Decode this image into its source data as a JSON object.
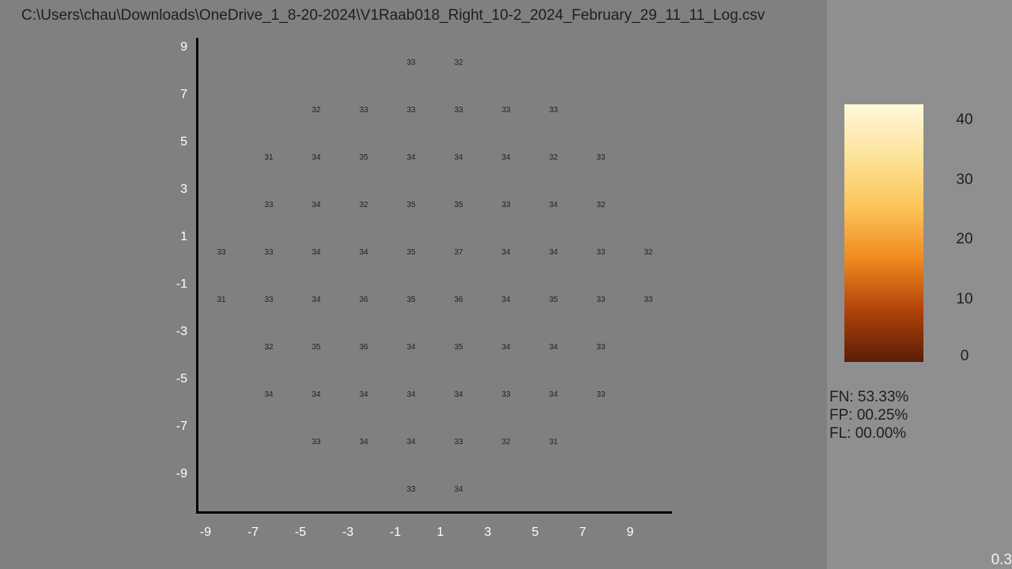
{
  "file_title": "C:\\Users\\chau\\Downloads\\OneDrive_1_8-20-2024\\V1Raab018_Right_10-2_2024_February_29_11_11_Log.csv",
  "stats": {
    "fn": "FN: 53.33%",
    "fp": "FP: 00.25%",
    "fl": "FL: 00.00%"
  },
  "corner_value": "0.3",
  "colors": {
    "background": "#808080",
    "panel": "#8f8f8f",
    "colormap": [
      "#5a1e06",
      "#b0420a",
      "#f08a1e",
      "#fcc45a",
      "#fde39a",
      "#fff8dc"
    ]
  },
  "chart_data": {
    "type": "heatmap",
    "title": "",
    "xlabel": "",
    "ylabel": "",
    "x_ticks": [
      -9,
      -7,
      -5,
      -3,
      -1,
      1,
      3,
      5,
      7,
      9
    ],
    "y_ticks": [
      9,
      7,
      5,
      3,
      1,
      -1,
      -3,
      -5,
      -7,
      -9
    ],
    "xlim": [
      -10,
      10
    ],
    "ylim": [
      -10,
      10
    ],
    "colorbar": {
      "min": 0,
      "max": 43,
      "ticks": [
        40,
        30,
        20,
        10,
        0
      ]
    },
    "points": [
      {
        "x": -1,
        "y": 9,
        "v": 33
      },
      {
        "x": 1,
        "y": 9,
        "v": 32
      },
      {
        "x": -5,
        "y": 7,
        "v": 32
      },
      {
        "x": -3,
        "y": 7,
        "v": 33
      },
      {
        "x": -1,
        "y": 7,
        "v": 33
      },
      {
        "x": 1,
        "y": 7,
        "v": 33
      },
      {
        "x": 3,
        "y": 7,
        "v": 33
      },
      {
        "x": 5,
        "y": 7,
        "v": 33
      },
      {
        "x": -7,
        "y": 5,
        "v": 31
      },
      {
        "x": -5,
        "y": 5,
        "v": 34
      },
      {
        "x": -3,
        "y": 5,
        "v": 35
      },
      {
        "x": -1,
        "y": 5,
        "v": 34
      },
      {
        "x": 1,
        "y": 5,
        "v": 34
      },
      {
        "x": 3,
        "y": 5,
        "v": 34
      },
      {
        "x": 5,
        "y": 5,
        "v": 32
      },
      {
        "x": 7,
        "y": 5,
        "v": 33
      },
      {
        "x": -7,
        "y": 3,
        "v": 33
      },
      {
        "x": -5,
        "y": 3,
        "v": 34
      },
      {
        "x": -3,
        "y": 3,
        "v": 32
      },
      {
        "x": -1,
        "y": 3,
        "v": 35
      },
      {
        "x": 1,
        "y": 3,
        "v": 35
      },
      {
        "x": 3,
        "y": 3,
        "v": 33
      },
      {
        "x": 5,
        "y": 3,
        "v": 34
      },
      {
        "x": 7,
        "y": 3,
        "v": 32
      },
      {
        "x": -9,
        "y": 1,
        "v": 33
      },
      {
        "x": -7,
        "y": 1,
        "v": 33
      },
      {
        "x": -5,
        "y": 1,
        "v": 34
      },
      {
        "x": -3,
        "y": 1,
        "v": 34
      },
      {
        "x": -1,
        "y": 1,
        "v": 35
      },
      {
        "x": 1,
        "y": 1,
        "v": 37
      },
      {
        "x": 3,
        "y": 1,
        "v": 34
      },
      {
        "x": 5,
        "y": 1,
        "v": 34
      },
      {
        "x": 7,
        "y": 1,
        "v": 33
      },
      {
        "x": 9,
        "y": 1,
        "v": 32
      },
      {
        "x": -9,
        "y": -1,
        "v": 31
      },
      {
        "x": -7,
        "y": -1,
        "v": 33
      },
      {
        "x": -5,
        "y": -1,
        "v": 34
      },
      {
        "x": -3,
        "y": -1,
        "v": 36
      },
      {
        "x": -1,
        "y": -1,
        "v": 35
      },
      {
        "x": 1,
        "y": -1,
        "v": 36
      },
      {
        "x": 3,
        "y": -1,
        "v": 34
      },
      {
        "x": 5,
        "y": -1,
        "v": 35
      },
      {
        "x": 7,
        "y": -1,
        "v": 33
      },
      {
        "x": 9,
        "y": -1,
        "v": 33
      },
      {
        "x": -7,
        "y": -3,
        "v": 32
      },
      {
        "x": -5,
        "y": -3,
        "v": 35
      },
      {
        "x": -3,
        "y": -3,
        "v": 36
      },
      {
        "x": -1,
        "y": -3,
        "v": 34
      },
      {
        "x": 1,
        "y": -3,
        "v": 35
      },
      {
        "x": 3,
        "y": -3,
        "v": 34
      },
      {
        "x": 5,
        "y": -3,
        "v": 34
      },
      {
        "x": 7,
        "y": -3,
        "v": 33
      },
      {
        "x": -7,
        "y": -5,
        "v": 34
      },
      {
        "x": -5,
        "y": -5,
        "v": 34
      },
      {
        "x": -3,
        "y": -5,
        "v": 34
      },
      {
        "x": -1,
        "y": -5,
        "v": 34
      },
      {
        "x": 1,
        "y": -5,
        "v": 34
      },
      {
        "x": 3,
        "y": -5,
        "v": 33
      },
      {
        "x": 5,
        "y": -5,
        "v": 34
      },
      {
        "x": 7,
        "y": -5,
        "v": 33
      },
      {
        "x": -5,
        "y": -7,
        "v": 33
      },
      {
        "x": -3,
        "y": -7,
        "v": 34
      },
      {
        "x": -1,
        "y": -7,
        "v": 34
      },
      {
        "x": 1,
        "y": -7,
        "v": 33
      },
      {
        "x": 3,
        "y": -7,
        "v": 32
      },
      {
        "x": 5,
        "y": -7,
        "v": 31
      },
      {
        "x": -1,
        "y": -9,
        "v": 33
      },
      {
        "x": 1,
        "y": -9,
        "v": 34
      }
    ]
  }
}
